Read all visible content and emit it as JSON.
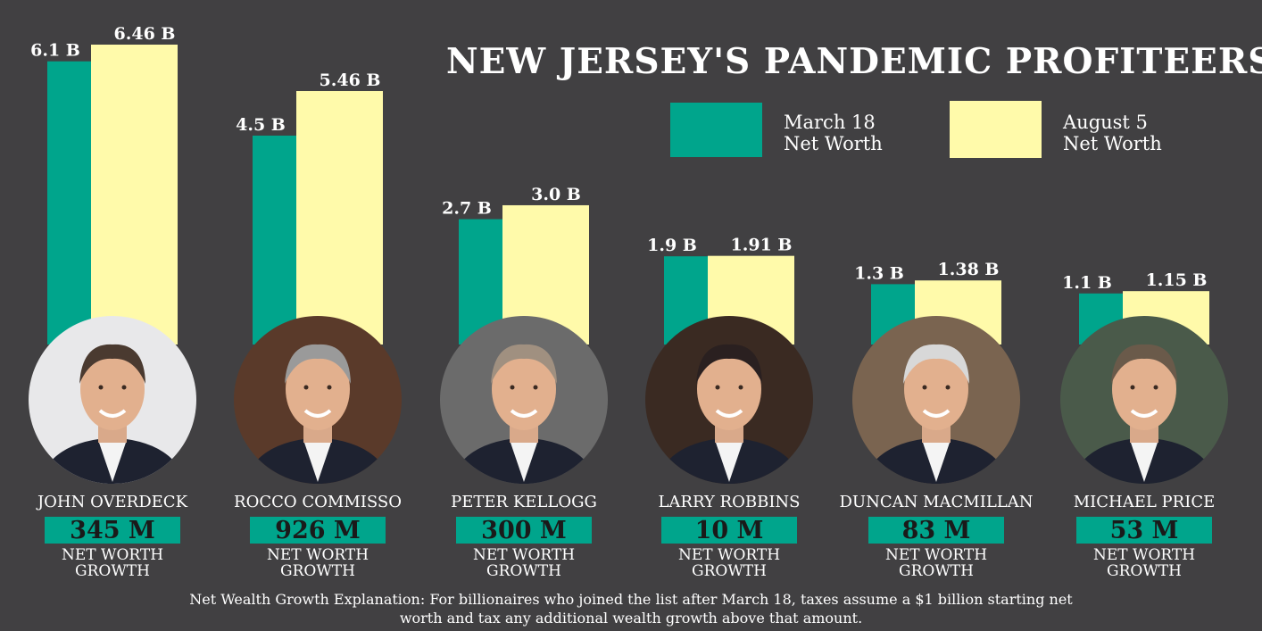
{
  "title": "NEW JERSEY'S PANDEMIC PROFITEERS",
  "legend": [
    {
      "line1": "March 18",
      "line2": "Net Worth",
      "color": "#00a58c"
    },
    {
      "line1": "August 5",
      "line2": "Net Worth",
      "color": "#fffaaa"
    }
  ],
  "people": [
    {
      "name": "JOHN OVERDECK",
      "growth": "345 M",
      "growth_label": "NET WORTH GROWTH",
      "photo_icon": "portrait-john-overdeck"
    },
    {
      "name": "ROCCO COMMISSO",
      "growth": "926 M",
      "growth_label": "NET WORTH GROWTH",
      "photo_icon": "portrait-rocco-commisso"
    },
    {
      "name": "PETER KELLOGG",
      "growth": "300 M",
      "growth_label": "NET WORTH GROWTH",
      "photo_icon": "portrait-peter-kellogg"
    },
    {
      "name": "LARRY ROBBINS",
      "growth": "10 M",
      "growth_label": "NET WORTH GROWTH",
      "photo_icon": "portrait-larry-robbins"
    },
    {
      "name": "DUNCAN MACMILLAN",
      "growth": "83 M",
      "growth_label": "NET WORTH GROWTH",
      "photo_icon": "portrait-duncan-macmillan"
    },
    {
      "name": "MICHAEL PRICE",
      "growth": "53 M",
      "growth_label": "NET WORTH GROWTH",
      "photo_icon": "portrait-michael-price"
    }
  ],
  "footnote": "Net Wealth Growth Explanation: For billionaires who joined the list after March 18, taxes assume a $1 billion starting net worth and tax any additional wealth growth above that amount.",
  "chart_data": {
    "type": "bar",
    "categories": [
      "JOHN OVERDECK",
      "ROCCO COMMISSO",
      "PETER KELLOGG",
      "LARRY ROBBINS",
      "DUNCAN MACMILLAN",
      "MICHAEL PRICE"
    ],
    "series": [
      {
        "name": "March 18 Net Worth",
        "values": [
          6.1,
          4.5,
          2.7,
          1.9,
          1.3,
          1.1
        ],
        "labels": [
          "6.1 B",
          "4.5 B",
          "2.7 B",
          "1.9 B",
          "1.3 B",
          "1.1 B"
        ],
        "color": "#00a58c"
      },
      {
        "name": "August 5 Net Worth",
        "values": [
          6.46,
          5.46,
          3.0,
          1.91,
          1.38,
          1.15
        ],
        "labels": [
          "6.46 B",
          "5.46 B",
          "3.0 B",
          "1.91 B",
          "1.38 B",
          "1.15 B"
        ],
        "color": "#fffaaa"
      }
    ],
    "ylim": [
      0,
      6.46
    ],
    "grid": false,
    "legend_position": "top-right"
  }
}
